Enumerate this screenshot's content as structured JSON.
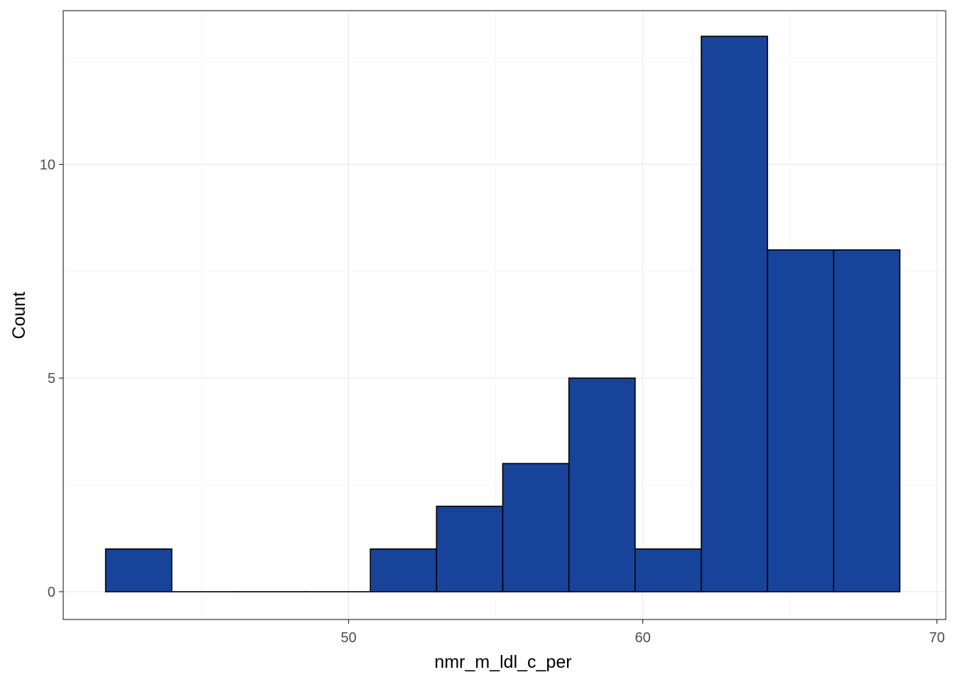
{
  "chart_data": {
    "type": "bar",
    "subtype": "histogram",
    "title": "",
    "xlabel": "nmr_m_ldl_c_per",
    "ylabel": "Count",
    "xlim": [
      40.3,
      70.3
    ],
    "ylim": [
      -0.65,
      13.6
    ],
    "x_ticks": [
      50,
      60,
      70
    ],
    "y_ticks": [
      0,
      5,
      10
    ],
    "grid": true,
    "legend": "none",
    "bin_width": 2.25,
    "bins": [
      {
        "x0": 41.74,
        "x1": 43.99,
        "count": 1
      },
      {
        "x0": 43.99,
        "x1": 46.24,
        "count": 0
      },
      {
        "x0": 46.24,
        "x1": 48.49,
        "count": 0
      },
      {
        "x0": 48.49,
        "x1": 50.74,
        "count": 0
      },
      {
        "x0": 50.74,
        "x1": 52.99,
        "count": 1
      },
      {
        "x0": 52.99,
        "x1": 55.24,
        "count": 2
      },
      {
        "x0": 55.24,
        "x1": 57.49,
        "count": 3
      },
      {
        "x0": 57.49,
        "x1": 59.74,
        "count": 5
      },
      {
        "x0": 59.74,
        "x1": 61.99,
        "count": 1
      },
      {
        "x0": 61.99,
        "x1": 64.24,
        "count": 13
      },
      {
        "x0": 64.24,
        "x1": 66.49,
        "count": 8
      },
      {
        "x0": 66.49,
        "x1": 68.74,
        "count": 8
      }
    ],
    "colors": {
      "bar_fill": "#18439a",
      "bar_stroke": "#000000",
      "grid_major": "#ebebeb",
      "grid_minor": "#f5f5f5",
      "panel_border": "#333333",
      "tick_label": "#4d4d4d"
    }
  }
}
